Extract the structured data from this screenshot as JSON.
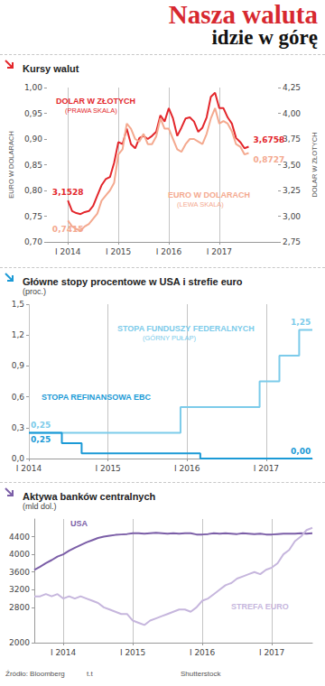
{
  "title": "Nasza waluta",
  "subtitle": "idzie w górę",
  "source": "Źródło: Bloomberg",
  "author": "t.t",
  "photo_credit": "Shutterstock",
  "chart_data": [
    {
      "type": "line",
      "title": "Kursy walut",
      "categories": [
        null,
        null,
        null,
        null,
        null,
        "I 2014",
        null,
        null,
        null,
        null,
        null,
        null,
        null,
        null,
        null,
        null,
        null,
        "I 2015",
        null,
        null,
        null,
        null,
        null,
        null,
        null,
        null,
        null,
        null,
        null,
        "I 2016",
        null,
        null,
        null,
        null,
        null,
        null,
        null,
        null,
        null,
        null,
        null,
        "I 2017",
        null,
        null,
        null,
        null,
        null,
        null,
        null,
        null,
        null,
        null,
        null,
        null,
        null,
        null
      ],
      "ylabel": "EURO W DOLARACH",
      "y2label": "DOLAR W ZŁOTYCH",
      "ylim": [
        0.7,
        1.0
      ],
      "yticks": [
        {
          "value": 0.7,
          "label": "0,70"
        },
        {
          "value": 0.75,
          "label": "0,75"
        },
        {
          "value": 0.8,
          "label": "0,80"
        },
        {
          "value": 0.85,
          "label": "0,85"
        },
        {
          "value": 0.9,
          "label": "0,90"
        },
        {
          "value": 0.95,
          "label": "0,95"
        },
        {
          "value": 1.0,
          "label": "1,00"
        }
      ],
      "y2lim": [
        2.75,
        4.25
      ],
      "y2ticks": [
        {
          "value": 2.75,
          "label": "2,75"
        },
        {
          "value": 3.0,
          "label": "3,00"
        },
        {
          "value": 3.25,
          "label": "3,25"
        },
        {
          "value": 3.5,
          "label": "3,50"
        },
        {
          "value": 3.75,
          "label": "3,75"
        },
        {
          "value": 4.0,
          "label": "4,00"
        },
        {
          "value": 4.25,
          "label": "4,25"
        }
      ],
      "grid": "x",
      "series": [
        {
          "name": "DOLAR W ZŁOTYCH",
          "note": "(PRAWA SKALA)",
          "color": "#e3262b",
          "axis": "y2",
          "values": [
            null,
            null,
            null,
            null,
            null,
            3.1528,
            3.05,
            3.03,
            3.02,
            3.04,
            3.05,
            3.1,
            3.2,
            3.3,
            3.36,
            3.38,
            3.52,
            3.72,
            3.7,
            3.85,
            3.7,
            3.66,
            3.76,
            3.78,
            3.75,
            3.78,
            3.82,
            3.98,
            3.92,
            4.05,
            3.95,
            3.78,
            3.86,
            3.95,
            3.96,
            3.92,
            3.82,
            3.86,
            3.96,
            4.16,
            4.2,
            4.05,
            4.05,
            3.96,
            3.9,
            3.76,
            3.72,
            3.66,
            3.6758,
            null,
            null,
            null,
            null,
            null,
            null,
            null
          ],
          "value_labels": [
            null,
            null,
            null,
            null,
            null,
            "3,1528",
            null,
            null,
            null,
            null,
            null,
            null,
            null,
            null,
            null,
            null,
            null,
            null,
            null,
            null,
            null,
            null,
            null,
            null,
            null,
            null,
            null,
            null,
            null,
            null,
            null,
            null,
            null,
            null,
            null,
            null,
            null,
            null,
            null,
            null,
            null,
            null,
            null,
            null,
            null,
            null,
            null,
            null,
            "3,6758",
            null,
            null,
            null,
            null,
            null,
            null,
            null
          ]
        },
        {
          "name": "EURO W DOLARACH",
          "note": "(LEWA SKALA)",
          "color": "#f4a98f",
          "values": [
            null,
            null,
            null,
            null,
            null,
            0.7415,
            0.73,
            0.725,
            0.722,
            0.73,
            0.735,
            0.745,
            0.755,
            0.78,
            0.79,
            0.8,
            0.815,
            0.87,
            0.88,
            0.93,
            0.92,
            0.9,
            0.895,
            0.91,
            0.89,
            0.89,
            0.905,
            0.94,
            0.92,
            0.92,
            0.9,
            0.88,
            0.875,
            0.89,
            0.9,
            0.9,
            0.895,
            0.89,
            0.91,
            0.94,
            0.96,
            0.93,
            0.935,
            0.93,
            0.915,
            0.89,
            0.885,
            0.87,
            0.8727,
            null,
            null,
            null,
            null,
            null,
            null,
            null
          ],
          "value_labels": [
            null,
            null,
            null,
            null,
            null,
            "0,7415",
            null,
            null,
            null,
            null,
            null,
            null,
            null,
            null,
            null,
            null,
            null,
            null,
            null,
            null,
            null,
            null,
            null,
            null,
            null,
            null,
            null,
            null,
            null,
            null,
            null,
            null,
            null,
            null,
            null,
            null,
            null,
            null,
            null,
            null,
            null,
            null,
            null,
            null,
            null,
            null,
            null,
            null,
            "0,8727",
            null,
            null,
            null,
            null,
            null,
            null,
            null
          ]
        }
      ]
    },
    {
      "type": "line",
      "title": "Główne stopy procentowe w USA i strefie euro",
      "subtitle": "(proc.)",
      "categories": [
        "I 2014",
        null,
        null,
        null,
        null,
        null,
        null,
        null,
        null,
        null,
        null,
        null,
        "I 2015",
        null,
        null,
        null,
        null,
        null,
        null,
        null,
        null,
        null,
        null,
        null,
        "I 2016",
        null,
        null,
        null,
        null,
        null,
        null,
        null,
        null,
        null,
        null,
        null,
        "I 2017",
        null,
        null,
        null,
        null,
        null,
        null,
        null
      ],
      "ylim": [
        0,
        1.5
      ],
      "yticks": [
        {
          "value": 0,
          "label": "0,0"
        },
        {
          "value": 0.3,
          "label": "0,3"
        },
        {
          "value": 0.6,
          "label": "0,6"
        },
        {
          "value": 0.9,
          "label": "0,9"
        },
        {
          "value": 1.2,
          "label": "1,2"
        },
        {
          "value": 1.5,
          "label": "1,5"
        }
      ],
      "grid": "x",
      "series": [
        {
          "name": "STOPA FUNDUSZY FEDERALNYCH",
          "note": "(GÓRNY PUŁAP)",
          "color": "#7ccbea",
          "line_style": "step",
          "values": [
            0.25,
            0.25,
            0.25,
            0.25,
            0.25,
            0.25,
            0.25,
            0.25,
            0.25,
            0.25,
            0.25,
            0.25,
            0.25,
            0.25,
            0.25,
            0.25,
            0.25,
            0.25,
            0.25,
            0.25,
            0.25,
            0.25,
            0.25,
            0.5,
            0.5,
            0.5,
            0.5,
            0.5,
            0.5,
            0.5,
            0.5,
            0.5,
            0.5,
            0.5,
            0.5,
            0.75,
            0.75,
            0.75,
            1,
            1,
            1,
            1.25,
            1.25,
            1.25
          ],
          "value_labels": [
            "0,25",
            null,
            null,
            null,
            null,
            null,
            null,
            null,
            null,
            null,
            null,
            null,
            null,
            null,
            null,
            null,
            null,
            null,
            null,
            null,
            null,
            null,
            null,
            null,
            null,
            null,
            null,
            null,
            null,
            null,
            null,
            null,
            null,
            null,
            null,
            null,
            null,
            null,
            null,
            null,
            null,
            null,
            null,
            "1,25"
          ]
        },
        {
          "name": "STOPA REFINANSOWA EBC",
          "color": "#1b9ad6",
          "line_style": "step",
          "values": [
            0.25,
            0.25,
            0.25,
            0.25,
            0.25,
            0.15,
            0.15,
            0.15,
            0.05,
            0.05,
            0.05,
            0.05,
            0.05,
            0.05,
            0.05,
            0.05,
            0.05,
            0.05,
            0.05,
            0.05,
            0.05,
            0.05,
            0.05,
            0.05,
            0.05,
            0.05,
            0,
            0,
            0,
            0,
            0,
            0,
            0,
            0,
            0,
            0,
            0,
            0,
            0,
            0,
            0,
            0,
            0,
            0
          ],
          "value_labels": [
            "0,25",
            null,
            null,
            null,
            null,
            null,
            null,
            null,
            null,
            null,
            null,
            null,
            null,
            null,
            null,
            null,
            null,
            null,
            null,
            null,
            null,
            null,
            null,
            null,
            null,
            null,
            null,
            null,
            null,
            null,
            null,
            null,
            null,
            null,
            null,
            null,
            null,
            null,
            null,
            null,
            null,
            null,
            null,
            "0,00"
          ]
        }
      ]
    },
    {
      "type": "line",
      "title": "Aktywa banków centralnych",
      "subtitle": "(mld dol.)",
      "categories": [
        null,
        null,
        null,
        null,
        null,
        "I 2014",
        null,
        null,
        null,
        null,
        null,
        null,
        null,
        null,
        null,
        null,
        null,
        "I 2015",
        null,
        null,
        null,
        null,
        null,
        null,
        null,
        null,
        null,
        null,
        null,
        "I 2016",
        null,
        null,
        null,
        null,
        null,
        null,
        null,
        null,
        null,
        null,
        null,
        "I 2017",
        null,
        null,
        null,
        null,
        null,
        null,
        null
      ],
      "ylim": [
        2000,
        4800
      ],
      "yticks": [
        2000,
        2800,
        3200,
        3600,
        4000,
        4400
      ],
      "grid": "x",
      "series": [
        {
          "name": "USA",
          "color": "#7b5ea7",
          "values": [
            3650,
            3720,
            3800,
            3870,
            3950,
            4000,
            4080,
            4150,
            4210,
            4270,
            4320,
            4370,
            4400,
            4420,
            4440,
            4450,
            4460,
            4480,
            4480,
            4470,
            4480,
            4490,
            4480,
            4470,
            4480,
            4470,
            4480,
            4480,
            4450,
            4450,
            4460,
            4480,
            4470,
            4480,
            4470,
            4460,
            4480,
            4470,
            4460,
            4470,
            4450,
            4450,
            4460,
            4470,
            4470,
            4470,
            4480,
            4470,
            4480
          ]
        },
        {
          "name": "STREFA EURO",
          "color": "#c6b6dd",
          "values": [
            3050,
            3050,
            3100,
            3050,
            3100,
            3000,
            3050,
            3000,
            3050,
            3000,
            2950,
            2900,
            2800,
            2750,
            2700,
            2650,
            2650,
            2500,
            2450,
            2400,
            2500,
            2550,
            2600,
            2650,
            2700,
            2750,
            2750,
            2700,
            2800,
            2950,
            3000,
            3100,
            3200,
            3300,
            3350,
            3450,
            3500,
            3550,
            3600,
            3550,
            3650,
            3700,
            3800,
            4000,
            4100,
            4300,
            4400,
            4550,
            4600
          ]
        }
      ]
    }
  ]
}
